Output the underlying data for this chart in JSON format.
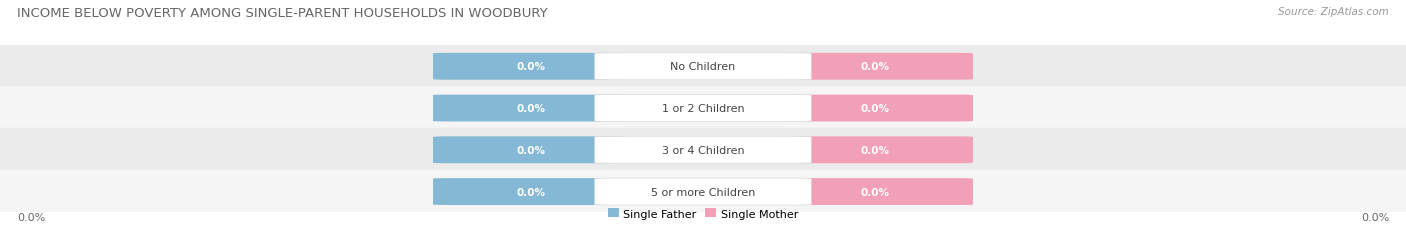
{
  "title": "INCOME BELOW POVERTY AMONG SINGLE-PARENT HOUSEHOLDS IN WOODBURY",
  "source": "Source: ZipAtlas.com",
  "categories": [
    "No Children",
    "1 or 2 Children",
    "3 or 4 Children",
    "5 or more Children"
  ],
  "father_values": [
    0.0,
    0.0,
    0.0,
    0.0
  ],
  "mother_values": [
    0.0,
    0.0,
    0.0,
    0.0
  ],
  "father_color": "#85b8d4",
  "mother_color": "#f2a0b8",
  "row_bg_odd": "#ebebeb",
  "row_bg_even": "#f5f5f5",
  "center_box_color": "#ffffff",
  "axis_label_left": "0.0%",
  "axis_label_right": "0.0%",
  "legend_father": "Single Father",
  "legend_mother": "Single Mother",
  "background_color": "#ffffff",
  "title_fontsize": 9.5,
  "source_fontsize": 7.5,
  "value_fontsize": 7.5,
  "cat_fontsize": 8,
  "legend_fontsize": 8,
  "fig_width": 14.06,
  "fig_height": 2.32
}
